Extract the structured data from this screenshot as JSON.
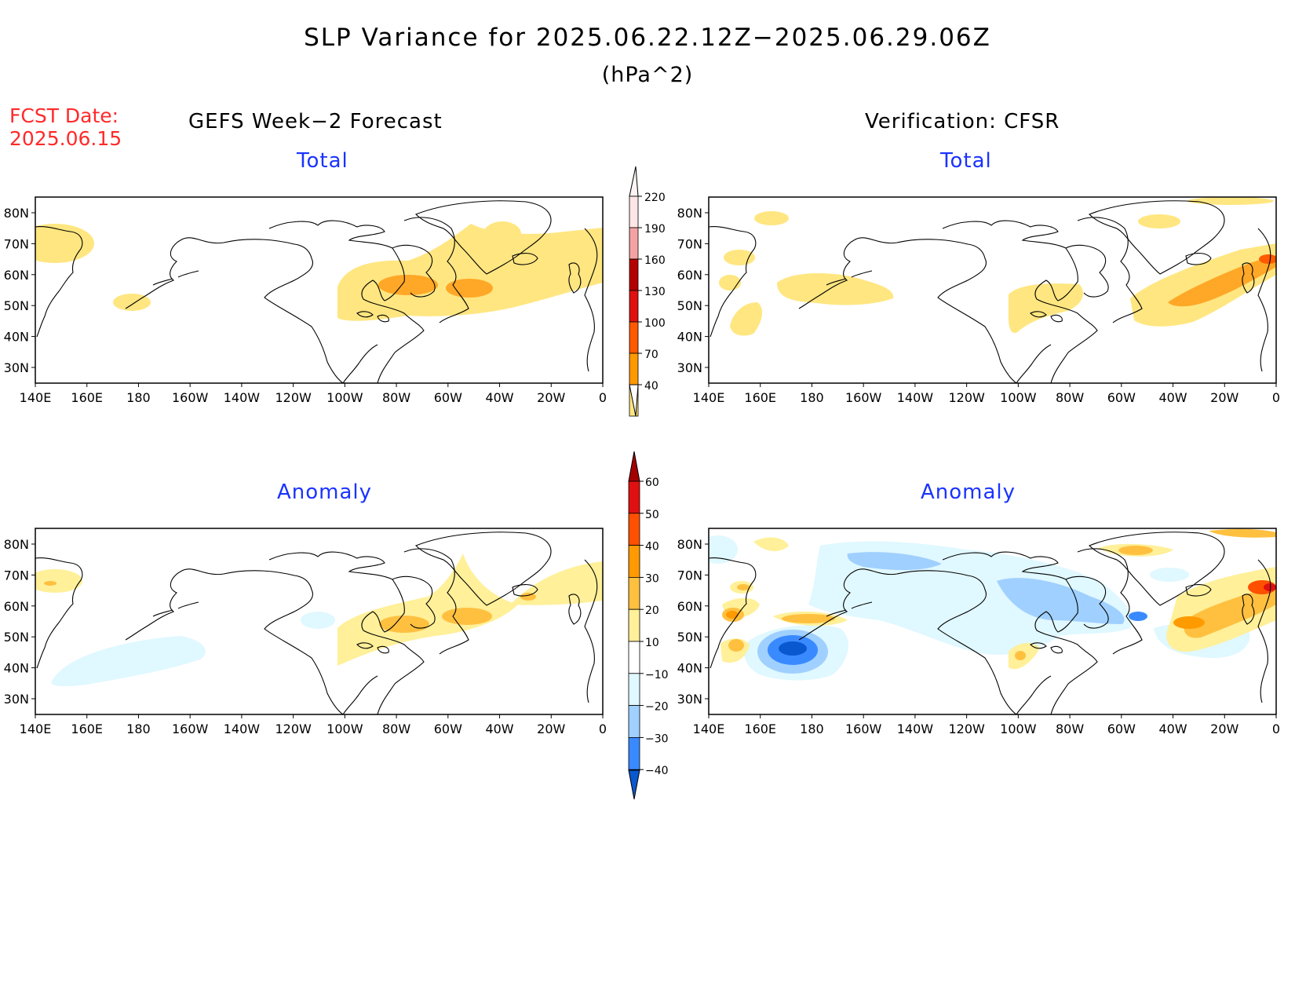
{
  "title": "SLP Variance for 2025.06.22.12Z−2025.06.29.06Z",
  "units": "(hPa^2)",
  "forecast_date": {
    "label": "FCST Date:",
    "value": "2025.06.15"
  },
  "columns": {
    "left": "GEFS Week−2 Forecast",
    "right": "Verification: CFSR"
  },
  "panel_titles": {
    "total": "Total",
    "anomaly": "Anomaly"
  },
  "lat_labels": [
    "80N",
    "70N",
    "60N",
    "50N",
    "40N",
    "30N"
  ],
  "lon_labels": [
    "140E",
    "160E",
    "180",
    "160W",
    "140W",
    "120W",
    "100W",
    "80W",
    "60W",
    "40W",
    "20W",
    "0"
  ],
  "colorbar_total": {
    "levels": [
      "220",
      "190",
      "160",
      "130",
      "100",
      "70",
      "40"
    ],
    "colors": [
      "#ffe6e6",
      "#f4a3a3",
      "#b50000",
      "#e01010",
      "#ff5a00",
      "#ff9900",
      "#ffe680"
    ]
  },
  "colorbar_anomaly": {
    "levels": [
      "60",
      "50",
      "40",
      "30",
      "20",
      "10",
      "−10",
      "−20",
      "−30",
      "−40"
    ],
    "colors": [
      "#a50000",
      "#e01010",
      "#ff5000",
      "#ff9a00",
      "#ffc040",
      "#fff099",
      "#ffffff",
      "#e0f8ff",
      "#a0d0ff",
      "#3a8aff",
      "#0a58d0"
    ]
  }
}
